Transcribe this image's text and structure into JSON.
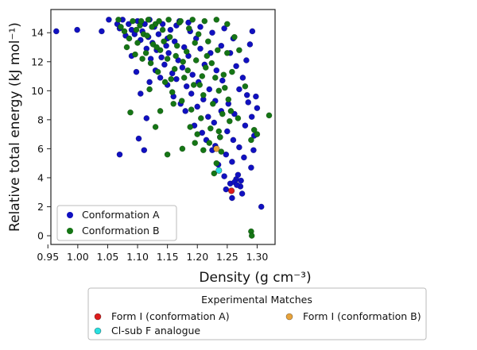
{
  "chart_data": {
    "type": "scatter",
    "title": "",
    "xlabel": "Density (g cm⁻³)",
    "ylabel": "Relative total energy (kJ mol⁻¹)",
    "xlim": [
      0.955,
      1.33
    ],
    "ylim": [
      -0.6,
      15.6
    ],
    "xticks": [
      0.95,
      1.0,
      1.05,
      1.1,
      1.15,
      1.2,
      1.25,
      1.3
    ],
    "xtick_labels": [
      "0.95",
      "1.00",
      "1.05",
      "1.10",
      "1.15",
      "1.20",
      "1.25",
      "1.30"
    ],
    "yticks": [
      0,
      2,
      4,
      6,
      8,
      10,
      12,
      14
    ],
    "ytick_labels": [
      "0",
      "2",
      "4",
      "6",
      "8",
      "10",
      "12",
      "14"
    ],
    "grid": false,
    "series": [
      {
        "name": "Conformation A",
        "color": "#1010c0",
        "points": [
          [
            0.964,
            14.1
          ],
          [
            0.999,
            14.2
          ],
          [
            1.04,
            14.1
          ],
          [
            1.052,
            14.9
          ],
          [
            1.066,
            14.6
          ],
          [
            1.07,
            14.3
          ],
          [
            1.075,
            14.9
          ],
          [
            1.08,
            13.8
          ],
          [
            1.085,
            14.6
          ],
          [
            1.09,
            14.2
          ],
          [
            1.095,
            13.9
          ],
          [
            1.1,
            14.8
          ],
          [
            1.105,
            13.5
          ],
          [
            1.108,
            14.1
          ],
          [
            1.112,
            14.6
          ],
          [
            1.115,
            12.9
          ],
          [
            1.118,
            13.7
          ],
          [
            1.12,
            14.9
          ],
          [
            1.122,
            12.2
          ],
          [
            1.125,
            13.3
          ],
          [
            1.128,
            14.4
          ],
          [
            1.13,
            11.4
          ],
          [
            1.132,
            12.8
          ],
          [
            1.135,
            13.9
          ],
          [
            1.138,
            10.9
          ],
          [
            1.14,
            12.3
          ],
          [
            1.142,
            14.6
          ],
          [
            1.145,
            11.8
          ],
          [
            1.148,
            13.1
          ],
          [
            1.15,
            10.4
          ],
          [
            1.152,
            12.6
          ],
          [
            1.155,
            14.2
          ],
          [
            1.158,
            11.2
          ],
          [
            1.16,
            9.6
          ],
          [
            1.162,
            13.4
          ],
          [
            1.165,
            10.8
          ],
          [
            1.168,
            12.1
          ],
          [
            1.17,
            14.8
          ],
          [
            1.172,
            9.1
          ],
          [
            1.175,
            11.6
          ],
          [
            1.178,
            13.0
          ],
          [
            1.18,
            8.6
          ],
          [
            1.182,
            10.3
          ],
          [
            1.185,
            12.4
          ],
          [
            1.188,
            14.1
          ],
          [
            1.19,
            9.8
          ],
          [
            1.192,
            11.1
          ],
          [
            1.195,
            7.6
          ],
          [
            1.198,
            13.6
          ],
          [
            1.2,
            8.9
          ],
          [
            1.202,
            10.6
          ],
          [
            1.205,
            12.9
          ],
          [
            1.208,
            7.1
          ],
          [
            1.21,
            9.4
          ],
          [
            1.212,
            11.8
          ],
          [
            1.215,
            6.6
          ],
          [
            1.218,
            8.2
          ],
          [
            1.22,
            10.1
          ],
          [
            1.222,
            12.6
          ],
          [
            1.225,
            5.9
          ],
          [
            1.228,
            7.8
          ],
          [
            1.23,
            9.3
          ],
          [
            1.232,
            11.4
          ],
          [
            1.235,
            4.9
          ],
          [
            1.238,
            6.8
          ],
          [
            1.24,
            8.6
          ],
          [
            1.242,
            10.7
          ],
          [
            1.245,
            4.1
          ],
          [
            1.248,
            5.6
          ],
          [
            1.25,
            7.2
          ],
          [
            1.252,
            9.1
          ],
          [
            1.255,
            3.6
          ],
          [
            1.258,
            5.1
          ],
          [
            1.26,
            6.6
          ],
          [
            1.262,
            8.4
          ],
          [
            1.265,
            3.9
          ],
          [
            1.268,
            4.2
          ],
          [
            1.27,
            6.1
          ],
          [
            1.272,
            3.4
          ],
          [
            1.275,
            2.9
          ],
          [
            1.278,
            5.4
          ],
          [
            1.28,
            7.6
          ],
          [
            1.285,
            9.2
          ],
          [
            1.29,
            4.7
          ],
          [
            1.295,
            6.9
          ],
          [
            1.3,
            8.8
          ],
          [
            1.307,
            2.0
          ],
          [
            1.292,
            14.1
          ],
          [
            1.288,
            13.2
          ],
          [
            1.282,
            12.1
          ],
          [
            1.276,
            10.9
          ],
          [
            1.26,
            13.6
          ],
          [
            1.245,
            14.3
          ],
          [
            1.102,
            6.7
          ],
          [
            1.111,
            5.9
          ],
          [
            1.07,
            5.6
          ],
          [
            1.105,
            9.8
          ],
          [
            1.09,
            12.4
          ],
          [
            1.115,
            8.1
          ],
          [
            1.12,
            10.6
          ],
          [
            1.098,
            11.3
          ],
          [
            1.15,
            13.6
          ],
          [
            1.165,
            14.5
          ],
          [
            1.185,
            14.7
          ],
          [
            1.205,
            14.4
          ],
          [
            1.225,
            14.0
          ],
          [
            1.24,
            13.1
          ],
          [
            1.255,
            12.6
          ],
          [
            1.265,
            11.7
          ],
          [
            1.27,
            10.1
          ],
          [
            1.258,
            2.6
          ],
          [
            1.248,
            3.2
          ],
          [
            1.262,
            3.7
          ],
          [
            1.266,
            3.5
          ],
          [
            1.273,
            3.8
          ],
          [
            1.283,
            9.7
          ],
          [
            1.291,
            8.2
          ],
          [
            1.298,
            9.6
          ],
          [
            1.294,
            5.9
          ],
          [
            1.23,
            6.2
          ]
        ]
      },
      {
        "name": "Conformation B",
        "color": "#157515",
        "points": [
          [
            1.088,
            8.5
          ],
          [
            1.068,
            14.9
          ],
          [
            1.072,
            14.4
          ],
          [
            1.078,
            14.1
          ],
          [
            1.082,
            13.0
          ],
          [
            1.086,
            13.6
          ],
          [
            1.092,
            14.8
          ],
          [
            1.096,
            12.5
          ],
          [
            1.1,
            13.3
          ],
          [
            1.104,
            14.5
          ],
          [
            1.11,
            13.9
          ],
          [
            1.114,
            12.6
          ],
          [
            1.118,
            14.9
          ],
          [
            1.122,
            11.9
          ],
          [
            1.126,
            13.2
          ],
          [
            1.13,
            14.6
          ],
          [
            1.134,
            11.3
          ],
          [
            1.138,
            12.8
          ],
          [
            1.142,
            14.2
          ],
          [
            1.146,
            10.6
          ],
          [
            1.15,
            12.2
          ],
          [
            1.154,
            13.7
          ],
          [
            1.158,
            9.9
          ],
          [
            1.162,
            11.5
          ],
          [
            1.166,
            13.1
          ],
          [
            1.17,
            14.7
          ],
          [
            1.174,
            9.3
          ],
          [
            1.178,
            10.9
          ],
          [
            1.182,
            12.7
          ],
          [
            1.186,
            14.3
          ],
          [
            1.19,
            8.7
          ],
          [
            1.194,
            10.4
          ],
          [
            1.198,
            12.1
          ],
          [
            1.202,
            13.9
          ],
          [
            1.206,
            8.1
          ],
          [
            1.21,
            9.7
          ],
          [
            1.214,
            11.6
          ],
          [
            1.218,
            13.4
          ],
          [
            1.222,
            7.4
          ],
          [
            1.226,
            9.1
          ],
          [
            1.23,
            10.9
          ],
          [
            1.234,
            12.8
          ],
          [
            1.238,
            6.8
          ],
          [
            1.242,
            8.4
          ],
          [
            1.246,
            10.2
          ],
          [
            1.25,
            14.6
          ],
          [
            1.254,
            7.9
          ],
          [
            1.258,
            11.3
          ],
          [
            1.228,
            4.3
          ],
          [
            1.232,
            5.0
          ],
          [
            1.24,
            5.8
          ],
          [
            1.236,
            7.2
          ],
          [
            1.21,
            5.9
          ],
          [
            1.196,
            6.4
          ],
          [
            1.175,
            6.0
          ],
          [
            1.15,
            5.6
          ],
          [
            1.13,
            7.5
          ],
          [
            1.108,
            12.2
          ],
          [
            1.12,
            10.1
          ],
          [
            1.138,
            8.6
          ],
          [
            1.16,
            9.1
          ],
          [
            1.188,
            7.5
          ],
          [
            1.2,
            7.0
          ],
          [
            1.22,
            6.4
          ],
          [
            1.29,
            0.3
          ],
          [
            1.291,
            0.0
          ],
          [
            1.32,
            8.3
          ],
          [
            1.3,
            7.0
          ],
          [
            1.29,
            6.6
          ],
          [
            1.295,
            7.3
          ],
          [
            1.28,
            10.3
          ],
          [
            1.27,
            12.8
          ],
          [
            1.262,
            13.7
          ],
          [
            1.25,
            12.6
          ],
          [
            1.244,
            11.1
          ],
          [
            1.252,
            9.4
          ],
          [
            1.232,
            14.9
          ],
          [
            1.212,
            14.8
          ],
          [
            1.192,
            14.9
          ],
          [
            1.172,
            14.8
          ],
          [
            1.152,
            14.9
          ],
          [
            1.136,
            14.8
          ],
          [
            1.124,
            14.4
          ],
          [
            1.144,
            13.4
          ],
          [
            1.164,
            12.4
          ],
          [
            1.184,
            11.4
          ],
          [
            1.204,
            10.4
          ],
          [
            1.224,
            11.9
          ],
          [
            1.116,
            13.8
          ],
          [
            1.132,
            13.0
          ],
          [
            1.156,
            10.8
          ],
          [
            1.176,
            12.0
          ],
          [
            1.196,
            13.3
          ],
          [
            1.216,
            12.4
          ],
          [
            1.236,
            10.0
          ],
          [
            1.256,
            8.6
          ],
          [
            1.268,
            8.1
          ],
          [
            1.098,
            14.2
          ],
          [
            1.106,
            14.8
          ],
          [
            1.208,
            11.0
          ]
        ]
      }
    ],
    "experimental_matches": [
      {
        "name": "Form I (conformation A)",
        "color": "#dd1c1c",
        "x": 1.257,
        "y": 3.1
      },
      {
        "name": "Form I (conformation B)",
        "color": "#e8a33b",
        "x": 1.232,
        "y": 6.0
      },
      {
        "name": "Cl-sub F analogue",
        "color": "#29e0e0",
        "x": 1.236,
        "y": 4.5
      }
    ],
    "legend_main": {
      "placement": "lower-left",
      "entries": [
        "Conformation A",
        "Conformation B"
      ]
    },
    "legend_experimental": {
      "title": "Experimental Matches",
      "placement": "below"
    }
  }
}
